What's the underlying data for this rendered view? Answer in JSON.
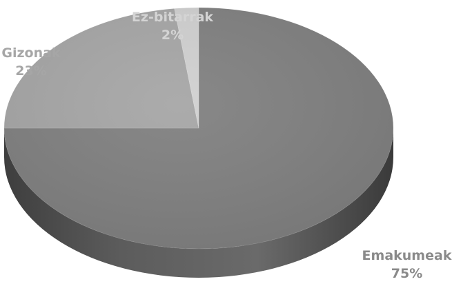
{
  "chart_data": {
    "type": "pie",
    "title": "",
    "slices": [
      {
        "label": "Emakumeak",
        "value": 75,
        "value_label": "75%",
        "color": "#808080"
      },
      {
        "label": "Gizonak",
        "value": 23,
        "value_label": "23%",
        "color": "#a6a6a6"
      },
      {
        "label": "Ez-bitarrak",
        "value": 2,
        "value_label": "2%",
        "color": "#d0d0d0"
      }
    ],
    "style": "3d"
  }
}
